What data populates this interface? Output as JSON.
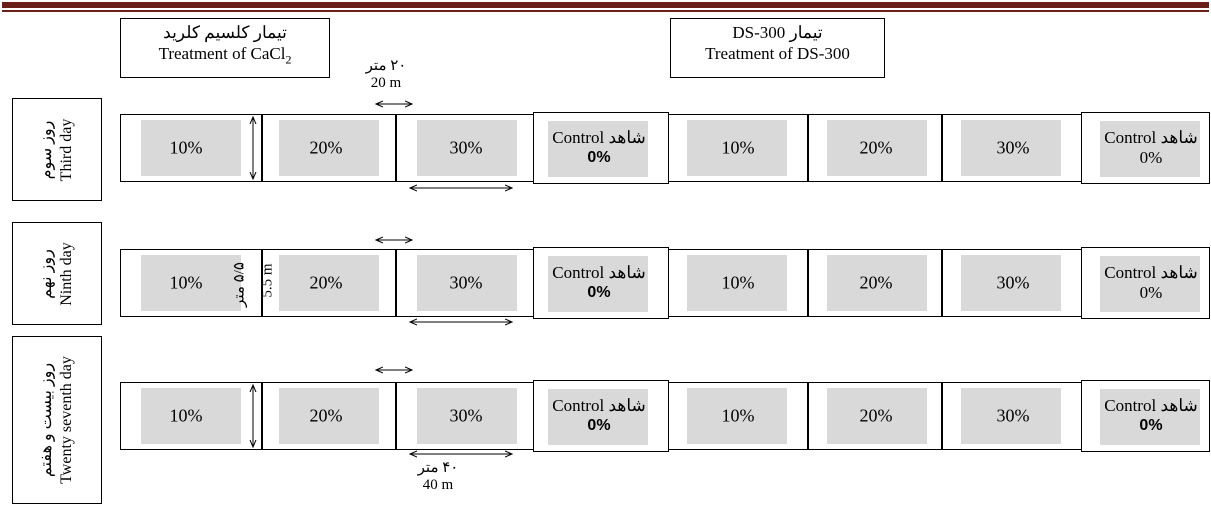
{
  "treatments": {
    "cacl2": {
      "persian": "تیمار کلسیم کلرید",
      "english": "Treatment of CaCl",
      "subscript": "2"
    },
    "ds300": {
      "persian": "تیمار DS-300",
      "english": "Treatment of DS-300"
    }
  },
  "days": [
    {
      "persian": "روز سوم",
      "english": "Third day"
    },
    {
      "persian": "روز نهم",
      "english": "Ninth day"
    },
    {
      "persian": "روز بیست و هفتم",
      "english": "Twenty seventh day"
    }
  ],
  "plots": {
    "p10": "10%",
    "p20": "20%",
    "p30": "30%",
    "control_label": "شاهد Control",
    "control_value": "0%"
  },
  "dimensions": {
    "gap_persian": "۲۰ متر",
    "gap_english": "20 m",
    "length_persian": "۴۰ متر",
    "length_english": "40 m",
    "width_persian": "۵/۵ متر",
    "width_english": "5.5 m"
  },
  "colors": {
    "header_bar": "#6b1f1a",
    "plot_fill": "#d9d9d9"
  }
}
